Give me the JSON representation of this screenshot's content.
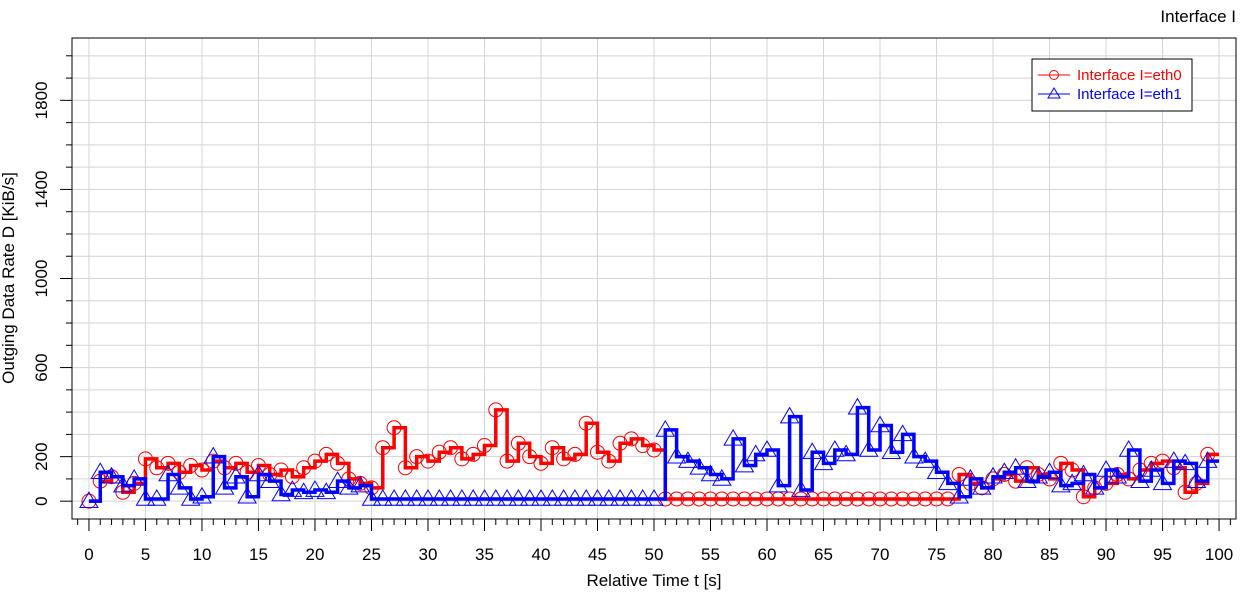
{
  "chart_data": {
    "type": "line",
    "title": "Interface I",
    "xlabel": "Relative Time t [s]",
    "ylabel": "Outging Data Rate D [KiB/s]",
    "xlim": [
      -1.5,
      101.5
    ],
    "ylim": [
      -80,
      2080
    ],
    "x_ticks": [
      0,
      5,
      10,
      15,
      20,
      25,
      30,
      35,
      40,
      45,
      50,
      55,
      60,
      65,
      70,
      75,
      80,
      85,
      90,
      95,
      100
    ],
    "y_ticks": [
      0,
      200,
      600,
      1000,
      1400,
      1800
    ],
    "grid": true,
    "legend_position": "top-right",
    "series": [
      {
        "name": "Interface I=eth0",
        "color": "#ff0000",
        "marker": "circle",
        "line_style": "step",
        "x": [
          0,
          1,
          2,
          3,
          4,
          5,
          6,
          7,
          8,
          9,
          10,
          11,
          12,
          13,
          14,
          15,
          16,
          17,
          18,
          19,
          20,
          21,
          22,
          23,
          24,
          25,
          26,
          27,
          28,
          29,
          30,
          31,
          32,
          33,
          34,
          35,
          36,
          37,
          38,
          39,
          40,
          41,
          42,
          43,
          44,
          45,
          46,
          47,
          48,
          49,
          50,
          51,
          52,
          53,
          54,
          55,
          56,
          57,
          58,
          59,
          60,
          61,
          62,
          63,
          64,
          65,
          66,
          67,
          68,
          69,
          70,
          71,
          72,
          73,
          74,
          75,
          76,
          77,
          78,
          79,
          80,
          81,
          82,
          83,
          84,
          85,
          86,
          87,
          88,
          89,
          90,
          91,
          92,
          93,
          94,
          95,
          96,
          97,
          98,
          99
        ],
        "y": [
          0,
          90,
          110,
          40,
          80,
          190,
          150,
          170,
          130,
          160,
          140,
          180,
          150,
          170,
          130,
          160,
          120,
          140,
          110,
          150,
          180,
          210,
          170,
          100,
          80,
          60,
          240,
          330,
          150,
          200,
          180,
          220,
          240,
          190,
          210,
          250,
          410,
          180,
          260,
          200,
          170,
          240,
          190,
          210,
          350,
          220,
          180,
          260,
          280,
          250,
          230,
          10,
          10,
          10,
          10,
          10,
          10,
          10,
          10,
          10,
          10,
          10,
          10,
          10,
          10,
          10,
          10,
          10,
          10,
          10,
          10,
          10,
          10,
          10,
          10,
          10,
          10,
          120,
          80,
          60,
          100,
          120,
          90,
          150,
          120,
          100,
          170,
          140,
          20,
          60,
          80,
          120,
          100,
          140,
          170,
          180,
          150,
          40,
          80,
          210
        ]
      },
      {
        "name": "Interface I=eth1",
        "color": "#0000ff",
        "marker": "triangle",
        "line_style": "step",
        "x": [
          0,
          1,
          2,
          3,
          4,
          5,
          6,
          7,
          8,
          9,
          10,
          11,
          12,
          13,
          14,
          15,
          16,
          17,
          18,
          19,
          20,
          21,
          22,
          23,
          24,
          25,
          26,
          27,
          28,
          29,
          30,
          31,
          32,
          33,
          34,
          35,
          36,
          37,
          38,
          39,
          40,
          41,
          42,
          43,
          44,
          45,
          46,
          47,
          48,
          49,
          50,
          51,
          52,
          53,
          54,
          55,
          56,
          57,
          58,
          59,
          60,
          61,
          62,
          63,
          64,
          65,
          66,
          67,
          68,
          69,
          70,
          71,
          72,
          73,
          74,
          75,
          76,
          77,
          78,
          79,
          80,
          81,
          82,
          83,
          84,
          85,
          86,
          87,
          88,
          89,
          90,
          91,
          92,
          93,
          94,
          95,
          96,
          97,
          98,
          99
        ],
        "y": [
          0,
          130,
          110,
          70,
          100,
          10,
          10,
          120,
          60,
          10,
          20,
          200,
          60,
          110,
          20,
          120,
          90,
          30,
          50,
          40,
          50,
          40,
          90,
          60,
          70,
          10,
          10,
          10,
          10,
          10,
          10,
          10,
          10,
          10,
          10,
          10,
          10,
          10,
          10,
          10,
          10,
          10,
          10,
          10,
          10,
          10,
          10,
          10,
          10,
          10,
          10,
          320,
          200,
          180,
          150,
          120,
          100,
          280,
          160,
          210,
          230,
          70,
          380,
          50,
          220,
          170,
          230,
          210,
          420,
          230,
          340,
          220,
          300,
          200,
          180,
          130,
          80,
          20,
          100,
          60,
          110,
          130,
          150,
          90,
          110,
          130,
          70,
          80,
          120,
          60,
          140,
          110,
          230,
          90,
          140,
          80,
          180,
          170,
          90,
          180
        ]
      }
    ]
  }
}
